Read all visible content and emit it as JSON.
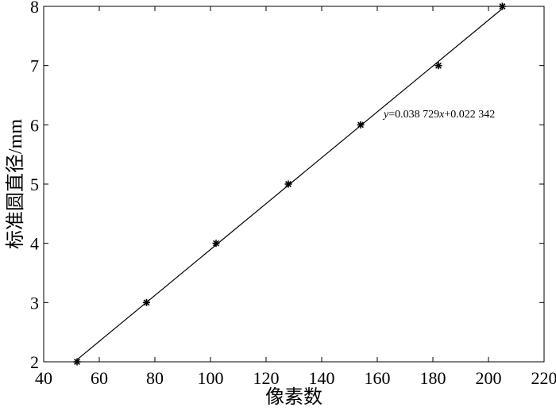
{
  "chart_data": {
    "type": "scatter",
    "xlabel": "像素数",
    "ylabel": "标准圆直径/mm",
    "xlim": [
      40,
      220
    ],
    "ylim": [
      2,
      8
    ],
    "xticks": [
      40,
      60,
      80,
      100,
      120,
      140,
      160,
      180,
      200,
      220
    ],
    "yticks": [
      2,
      3,
      4,
      5,
      6,
      7,
      8
    ],
    "grid": false,
    "points": [
      {
        "x": 52,
        "y": 2
      },
      {
        "x": 77,
        "y": 3
      },
      {
        "x": 102,
        "y": 4
      },
      {
        "x": 128,
        "y": 5
      },
      {
        "x": 154,
        "y": 6
      },
      {
        "x": 182,
        "y": 7
      },
      {
        "x": 205,
        "y": 8
      }
    ],
    "fit_line": {
      "slope": 0.038729,
      "intercept": 0.022342
    },
    "annotation": {
      "y_var": "y",
      "mid1": "=0.038 729",
      "x_var": "x",
      "mid2": "+0.022 342"
    },
    "colors": {
      "line": "#000000",
      "marker": "#000000",
      "axis": "#000000"
    }
  }
}
